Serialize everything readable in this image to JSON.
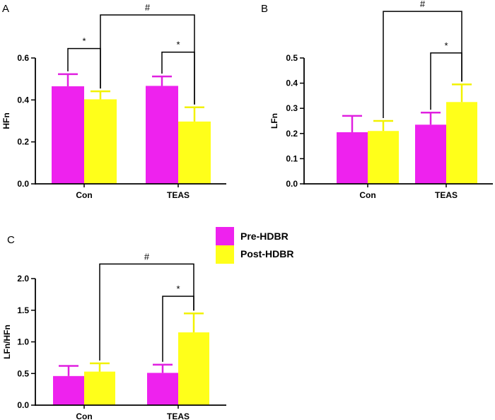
{
  "legend": {
    "items": [
      {
        "name": "Pre-HDBR",
        "color": "#ee22ee"
      },
      {
        "name": "Post-HDBR",
        "color": "#ffff1a"
      }
    ]
  },
  "chart_data": [
    {
      "panel": "A",
      "type": "bar",
      "ylabel": "HFn",
      "xlabel": "",
      "categories": [
        "Con",
        "TEAS"
      ],
      "ylim": [
        0,
        0.6
      ],
      "yticks": [
        "0.0",
        "0.2",
        "0.4",
        "0.6"
      ],
      "series": [
        {
          "name": "Pre-HDBR",
          "values": [
            0.465,
            0.467
          ],
          "errors": [
            0.058,
            0.045
          ]
        },
        {
          "name": "Post-HDBR",
          "values": [
            0.403,
            0.297
          ],
          "errors": [
            0.038,
            0.068
          ]
        }
      ],
      "annotations": [
        {
          "label": "*",
          "type": "within",
          "category": 0,
          "level": 0.645
        },
        {
          "label": "*",
          "type": "within",
          "category": 1,
          "level": 0.628
        },
        {
          "label": "#",
          "type": "between",
          "level": 0.805
        }
      ]
    },
    {
      "panel": "B",
      "type": "bar",
      "ylabel": "LFn",
      "xlabel": "",
      "categories": [
        "Con",
        "TEAS"
      ],
      "ylim": [
        0,
        0.5
      ],
      "yticks": [
        "0.0",
        "0.1",
        "0.2",
        "0.3",
        "0.4",
        "0.5"
      ],
      "series": [
        {
          "name": "Pre-HDBR",
          "values": [
            0.205,
            0.235
          ],
          "errors": [
            0.065,
            0.048
          ]
        },
        {
          "name": "Post-HDBR",
          "values": [
            0.21,
            0.325
          ],
          "errors": [
            0.04,
            0.07
          ]
        }
      ],
      "annotations": [
        {
          "label": "*",
          "type": "within",
          "category": 1,
          "level": 0.52
        },
        {
          "label": "#",
          "type": "between",
          "level": 0.685
        }
      ]
    },
    {
      "panel": "C",
      "type": "bar",
      "ylabel": "LFn/HFn",
      "xlabel": "",
      "categories": [
        "Con",
        "TEAS"
      ],
      "ylim": [
        0,
        2.0
      ],
      "yticks": [
        "0.0",
        "0.5",
        "1.0",
        "1.5",
        "2.0"
      ],
      "series": [
        {
          "name": "Pre-HDBR",
          "values": [
            0.46,
            0.51
          ],
          "errors": [
            0.16,
            0.13
          ]
        },
        {
          "name": "Post-HDBR",
          "values": [
            0.53,
            1.15
          ],
          "errors": [
            0.13,
            0.3
          ]
        }
      ],
      "annotations": [
        {
          "label": "*",
          "type": "within",
          "category": 1,
          "level": 1.72
        },
        {
          "label": "#",
          "type": "between",
          "level": 2.23
        }
      ]
    }
  ]
}
